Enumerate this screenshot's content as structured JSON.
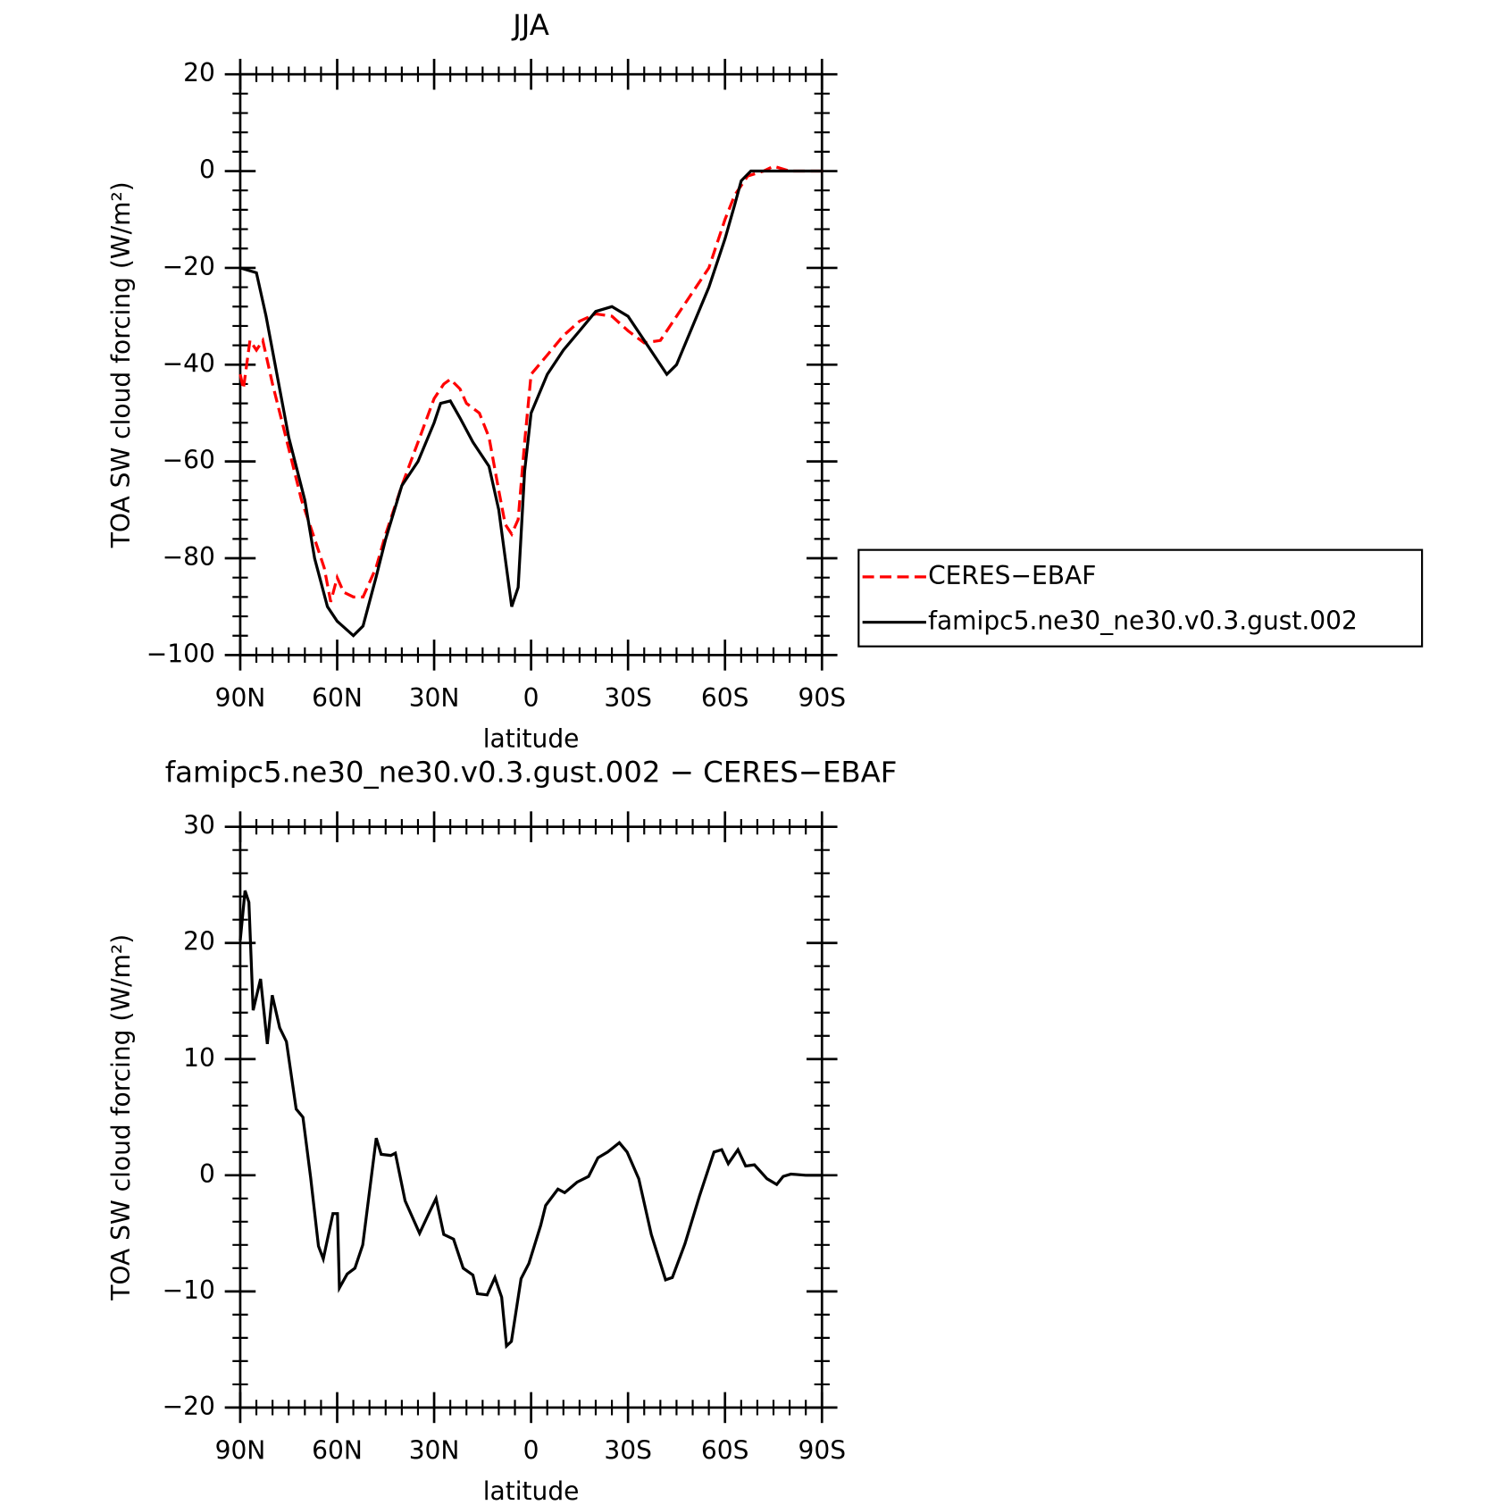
{
  "chart_data": [
    {
      "type": "line",
      "title": "JJA",
      "xlabel": "latitude",
      "ylabel": "TOA SW cloud forcing (W/m²)",
      "xlim": [
        90,
        -90
      ],
      "xticks": [
        {
          "value": 90,
          "label": "90N"
        },
        {
          "value": 60,
          "label": "60N"
        },
        {
          "value": 30,
          "label": "30N"
        },
        0,
        {
          "value": -30,
          "label": "30S"
        },
        {
          "value": -60,
          "label": "60S"
        },
        {
          "value": -90,
          "label": "90S"
        }
      ],
      "ylim": [
        -100,
        20
      ],
      "yticks": [
        {
          "value": -100,
          "label": "−100"
        },
        {
          "value": -80,
          "label": "−80"
        },
        {
          "value": -60,
          "label": "−60"
        },
        {
          "value": -40,
          "label": "−40"
        },
        {
          "value": -20,
          "label": "−20"
        },
        0,
        20
      ],
      "legend": "right",
      "series": [
        {
          "name": "CERES−EBAF",
          "color": "#ff0000",
          "style": "dashed",
          "x": [
            90,
            89,
            87,
            85,
            83,
            80,
            77,
            74,
            71,
            67,
            64,
            62,
            60,
            58,
            55,
            52,
            48,
            45,
            40,
            35,
            30,
            27,
            25,
            22,
            20,
            16,
            13,
            10,
            8,
            6,
            4,
            2,
            0,
            -5,
            -10,
            -15,
            -20,
            -25,
            -30,
            -35,
            -40,
            -45,
            -50,
            -55,
            -60,
            -63,
            -67,
            -72,
            -75,
            -80,
            -90
          ],
          "values": [
            -42,
            -45,
            -35,
            -37,
            -35,
            -44,
            -52,
            -60,
            -68,
            -76,
            -82,
            -89,
            -84,
            -87,
            -88,
            -88,
            -82,
            -75,
            -65,
            -56,
            -47,
            -44,
            -43,
            -45,
            -48,
            -50,
            -55,
            -66,
            -73,
            -75,
            -72,
            -56,
            -42,
            -38,
            -34,
            -31,
            -29.5,
            -30,
            -33,
            -35.5,
            -35,
            -30,
            -25,
            -20,
            -10,
            -5,
            -1,
            0,
            1,
            0,
            0
          ]
        },
        {
          "name": "famipc5.ne30_ne30.v0.3.gust.002",
          "color": "#000000",
          "style": "solid",
          "x": [
            90,
            85,
            82,
            75,
            70,
            67,
            63,
            60,
            55,
            52,
            48,
            45,
            40,
            35,
            30,
            28,
            25,
            22,
            18,
            13,
            10,
            8,
            6,
            4,
            2,
            0,
            -5,
            -10,
            -15,
            -20,
            -25,
            -30,
            -35,
            -40,
            -42,
            -45,
            -50,
            -55,
            -60,
            -63,
            -65,
            -68,
            -75,
            -90
          ],
          "values": [
            -20,
            -21,
            -30,
            -55,
            -68,
            -80,
            -90,
            -93,
            -96,
            -94,
            -84,
            -76,
            -65,
            -60,
            -52,
            -48,
            -47.5,
            -51,
            -56,
            -61,
            -70,
            -80,
            -90,
            -86,
            -62,
            -50,
            -42,
            -37,
            -33,
            -29,
            -28,
            -30,
            -35,
            -40,
            -42,
            -40,
            -32,
            -24,
            -14,
            -7,
            -2,
            0,
            0,
            0
          ]
        }
      ]
    },
    {
      "type": "line",
      "title": "famipc5.ne30_ne30.v0.3.gust.002 − CERES−EBAF",
      "xlabel": "latitude",
      "ylabel": "TOA SW cloud forcing (W/m²)",
      "xlim": [
        90,
        -90
      ],
      "xticks": [
        {
          "value": 90,
          "label": "90N"
        },
        {
          "value": 60,
          "label": "60N"
        },
        {
          "value": 30,
          "label": "30N"
        },
        0,
        {
          "value": -30,
          "label": "30S"
        },
        {
          "value": -60,
          "label": "60S"
        },
        {
          "value": -90,
          "label": "90S"
        }
      ],
      "ylim": [
        -20,
        30
      ],
      "yticks": [
        {
          "value": -20,
          "label": "−20"
        },
        {
          "value": -10,
          "label": "−10"
        },
        0,
        10,
        20,
        30
      ],
      "series": [
        {
          "color": "#000000",
          "style": "solid",
          "x": [
            90,
            88.5,
            87.3,
            86,
            83.7,
            81.6,
            80.1,
            77.8,
            75.7,
            72.7,
            70.6,
            68.2,
            65.8,
            64.3,
            61.3,
            59.9,
            59.3,
            56.9,
            54.5,
            52.1,
            47.9,
            46.4,
            43.4,
            42,
            39,
            34.5,
            31.5,
            29.4,
            27,
            24,
            21,
            18,
            16.6,
            13.6,
            11.2,
            9.1,
            7.6,
            6.1,
            3.1,
            0.7,
            -3,
            -4.5,
            -8.3,
            -10.4,
            -14.2,
            -17.8,
            -20.7,
            -23.7,
            -27.3,
            -29.7,
            -33.3,
            -37.2,
            -41.6,
            -43.7,
            -47.6,
            -52.1,
            -56.6,
            -59,
            -61,
            -64,
            -66.4,
            -69.1,
            -73,
            -76,
            -78,
            -80.4,
            -84.9,
            -90
          ],
          "values": [
            20.2,
            24.5,
            23.5,
            14.2,
            16.9,
            11.3,
            15.5,
            12.7,
            11.5,
            5.7,
            5,
            -0.2,
            -6.1,
            -7.2,
            -3.3,
            -3.3,
            -9.7,
            -8.5,
            -8,
            -6,
            3.2,
            1.8,
            1.7,
            1.9,
            -2.2,
            -5,
            -3.2,
            -2,
            -5.1,
            -5.5,
            -8,
            -8.6,
            -10.2,
            -10.3,
            -8.8,
            -10.5,
            -14.7,
            -14.3,
            -8.9,
            -7.6,
            -4.3,
            -2.6,
            -1.2,
            -1.5,
            -0.6,
            -0.1,
            1.5,
            2,
            2.8,
            2,
            -0.3,
            -5.1,
            -9,
            -8.8,
            -5.9,
            -1.8,
            2,
            2.2,
            1,
            2.2,
            0.8,
            0.9,
            -0.3,
            -0.8,
            -0.1,
            0.1,
            0,
            0
          ]
        }
      ]
    }
  ]
}
